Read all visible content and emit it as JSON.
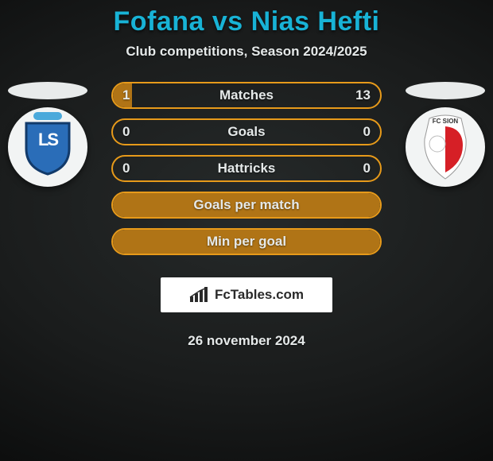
{
  "colors": {
    "title": "#18b3d6",
    "text_light": "#e5e9e9",
    "row_border": "#e79a1a",
    "row_fill": "#b07416",
    "badge_left_top": "#4aa9db",
    "badge_left_shield_fill": "#2a6db8",
    "badge_left_shield_stroke": "#123a6a",
    "badge_right_bg": "#ffffff",
    "badge_right_red": "#d61f26"
  },
  "title": "Fofana vs Nias Hefti",
  "subtitle": "Club competitions, Season 2024/2025",
  "left_club_letters": "LS",
  "right_club_text": "FC SION",
  "rows": [
    {
      "label": "Matches",
      "left_val": "1",
      "right_val": "13",
      "fill_pct": 7.1
    },
    {
      "label": "Goals",
      "left_val": "0",
      "right_val": "0",
      "fill_pct": 0
    },
    {
      "label": "Hattricks",
      "left_val": "0",
      "right_val": "0",
      "fill_pct": 0
    },
    {
      "label": "Goals per match",
      "left_val": "",
      "right_val": "",
      "fill_pct": 100
    },
    {
      "label": "Min per goal",
      "left_val": "",
      "right_val": "",
      "fill_pct": 100
    }
  ],
  "brand": "FcTables.com",
  "date": "26 november 2024"
}
